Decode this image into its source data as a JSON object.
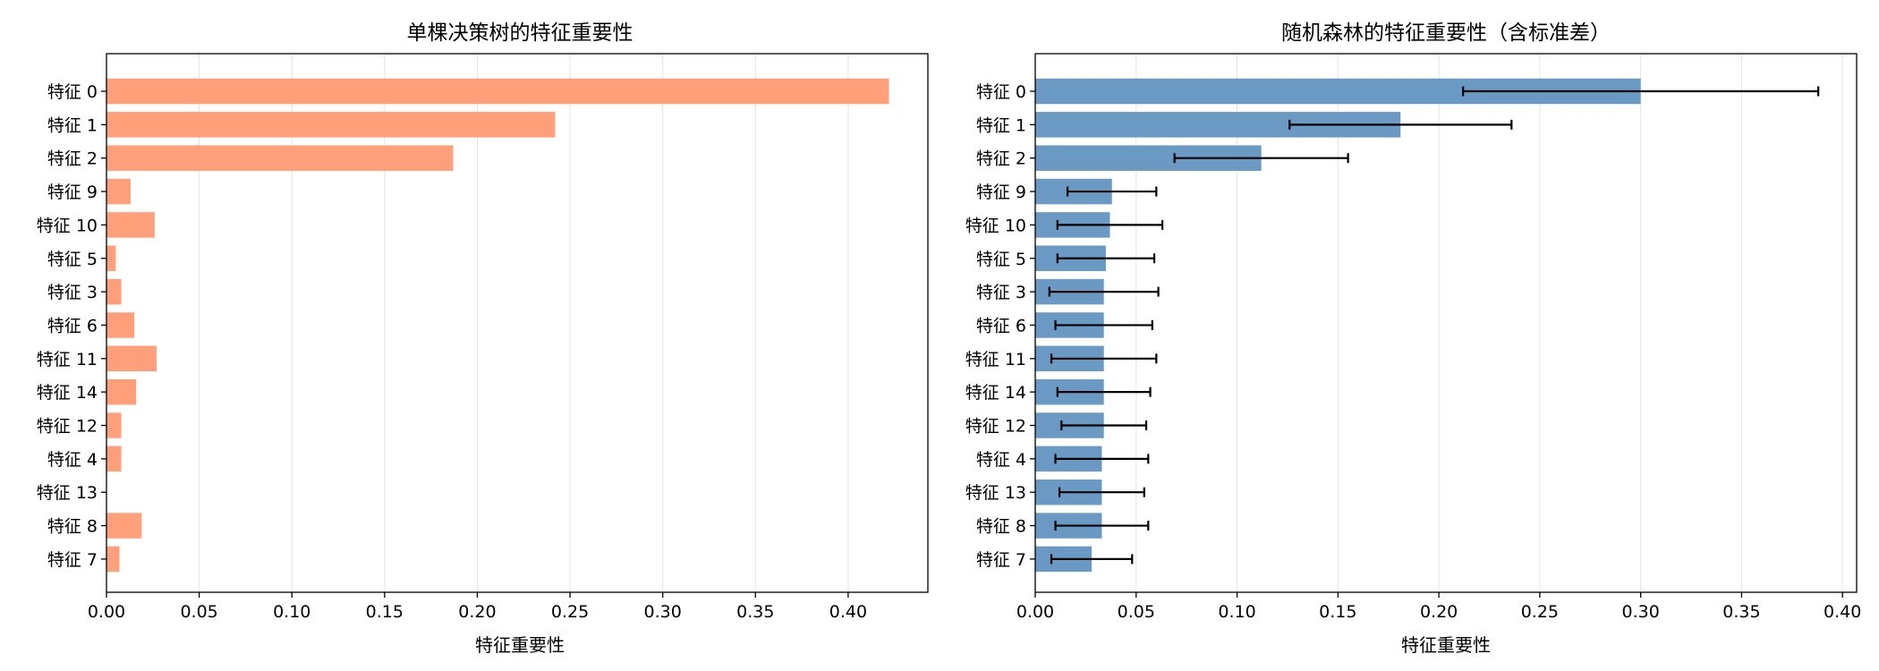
{
  "chart_data": [
    {
      "type": "bar",
      "orientation": "horizontal",
      "title": "单棵决策树的特征重要性",
      "xlabel": "特征重要性",
      "ylabel": "",
      "xlim": [
        0,
        0.443
      ],
      "xticks": [
        "0.00",
        "0.05",
        "0.10",
        "0.15",
        "0.20",
        "0.25",
        "0.30",
        "0.35",
        "0.40"
      ],
      "grid": "x",
      "color": "#FFA07A",
      "categories": [
        "特征 0",
        "特征 1",
        "特征 2",
        "特征 9",
        "特征 10",
        "特征 5",
        "特征 3",
        "特征 6",
        "特征 11",
        "特征 14",
        "特征 12",
        "特征 4",
        "特征 13",
        "特征 8",
        "特征 7"
      ],
      "values": [
        0.422,
        0.242,
        0.187,
        0.013,
        0.026,
        0.005,
        0.008,
        0.015,
        0.027,
        0.016,
        0.008,
        0.008,
        0.0,
        0.019,
        0.007
      ]
    },
    {
      "type": "bar",
      "orientation": "horizontal",
      "title": "随机森林的特征重要性（含标准差）",
      "xlabel": "特征重要性",
      "ylabel": "",
      "xlim": [
        0,
        0.407
      ],
      "xticks": [
        "0.00",
        "0.05",
        "0.10",
        "0.15",
        "0.20",
        "0.25",
        "0.30",
        "0.35",
        "0.40"
      ],
      "grid": "x",
      "color": "#6A9AC4",
      "error_color": "#000000",
      "categories": [
        "特征 0",
        "特征 1",
        "特征 2",
        "特征 9",
        "特征 10",
        "特征 5",
        "特征 3",
        "特征 6",
        "特征 11",
        "特征 14",
        "特征 12",
        "特征 4",
        "特征 13",
        "特征 8",
        "特征 7"
      ],
      "values": [
        0.3,
        0.181,
        0.112,
        0.038,
        0.037,
        0.035,
        0.034,
        0.034,
        0.034,
        0.034,
        0.034,
        0.033,
        0.033,
        0.033,
        0.028
      ],
      "errors": [
        0.088,
        0.055,
        0.043,
        0.022,
        0.026,
        0.024,
        0.027,
        0.024,
        0.026,
        0.023,
        0.021,
        0.023,
        0.021,
        0.023,
        0.02
      ]
    }
  ]
}
